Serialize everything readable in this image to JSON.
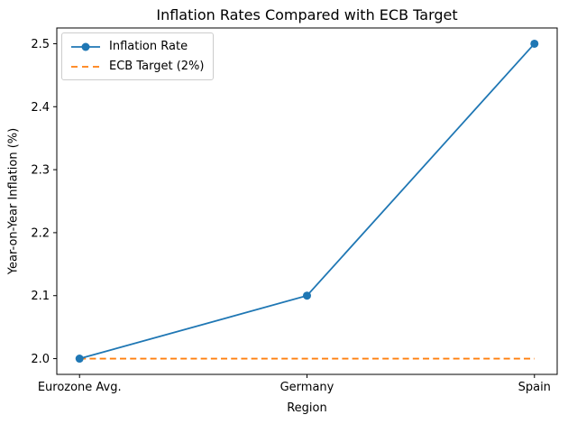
{
  "chart_data": {
    "type": "line",
    "title": "Inflation Rates Compared with ECB Target",
    "xlabel": "Region",
    "ylabel": "Year-on-Year Inflation (%)",
    "categories": [
      "Eurozone Avg.",
      "Germany",
      "Spain"
    ],
    "series": [
      {
        "name": "Inflation Rate",
        "values": [
          2.0,
          2.1,
          2.5
        ],
        "color": "#1f77b4",
        "style": "solid",
        "marker": "circle"
      },
      {
        "name": "ECB Target (2%)",
        "values": [
          2.0,
          2.0,
          2.0
        ],
        "color": "#ff7f0e",
        "style": "dashed",
        "marker": "none"
      }
    ],
    "yticks": [
      2.0,
      2.1,
      2.2,
      2.3,
      2.4,
      2.5
    ],
    "ytick_labels": [
      "2.0",
      "2.1",
      "2.2",
      "2.3",
      "2.4",
      "2.5"
    ],
    "ylim": [
      1.975,
      2.525
    ],
    "xlim": [
      -0.1,
      2.1
    ],
    "grid": false,
    "legend_position": "upper left",
    "axis_color": "#000000",
    "text_color": "#000000"
  }
}
